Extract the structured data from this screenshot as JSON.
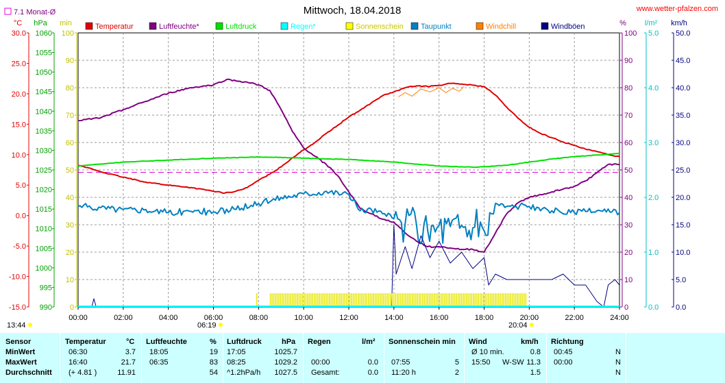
{
  "header": {
    "title": "Mittwoch, 18.04.2018",
    "website": "www.wetter-pfalzen.com",
    "monthly_avg_label": "7.1 Monat-Ø"
  },
  "legend": [
    {
      "label": "Temperatur",
      "color": "#e00000"
    },
    {
      "label": "Luftfeuchte*",
      "color": "#800080"
    },
    {
      "label": "Luftdruck",
      "color": "#00e000"
    },
    {
      "label": "Regen*",
      "color": "#00ffff"
    },
    {
      "label": "Sonnenschein",
      "color": "#ffff00"
    },
    {
      "label": "Taupunkt",
      "color": "#0080c0"
    },
    {
      "label": "Windchill",
      "color": "#ff8000"
    },
    {
      "label": "Windböen",
      "color": "#000080"
    }
  ],
  "axis_units": {
    "temp": "°C",
    "pressure": "hPa",
    "sun": "min",
    "humidity": "%",
    "rain": "l/m²",
    "wind": "km/h"
  },
  "axis_ticks": {
    "temp": [
      "30.0",
      "25.0",
      "20.0",
      "15.0",
      "10.0",
      "5.0",
      "0.0",
      "-5.0",
      "-10.0",
      "-15.0"
    ],
    "pressure": [
      "1060",
      "1055",
      "1050",
      "1045",
      "1040",
      "1035",
      "1030",
      "1025",
      "1020",
      "1015",
      "1010",
      "1005",
      "1000",
      "995",
      "990"
    ],
    "sun": [
      "100",
      "90",
      "80",
      "70",
      "60",
      "50",
      "40",
      "30",
      "20",
      "10",
      "0"
    ],
    "humidity": [
      "100",
      "90",
      "80",
      "70",
      "60",
      "50",
      "40",
      "30",
      "20",
      "10",
      "0"
    ],
    "rain": [
      "5.0",
      "4.0",
      "3.0",
      "2.0",
      "1.0",
      "0.0"
    ],
    "wind": [
      "50.0",
      "45.0",
      "40.0",
      "35.0",
      "30.0",
      "25.0",
      "20.0",
      "15.0",
      "10.0",
      "5.0",
      "0.0"
    ],
    "time": [
      "00:00",
      "02:00",
      "04:00",
      "06:00",
      "08:00",
      "10:00",
      "12:00",
      "14:00",
      "16:00",
      "18:00",
      "20:00",
      "22:00",
      "24:00"
    ]
  },
  "sun_events": {
    "daylength": "13:44",
    "sunrise": "06:19",
    "sunset": "20:04"
  },
  "chart_data": {
    "type": "line",
    "title": "Mittwoch, 18.04.2018",
    "x_unit": "hour",
    "xlim": [
      0,
      24
    ],
    "monthly_avg_temp": 7.1,
    "series": [
      {
        "name": "Temperatur",
        "unit": "°C",
        "axis": "temp",
        "ylim": [
          -15,
          30
        ],
        "x": [
          0,
          0.5,
          1,
          2,
          3,
          4,
          5,
          6,
          6.5,
          7,
          7.5,
          8,
          8.5,
          9,
          9.5,
          10,
          10.5,
          11,
          11.5,
          12,
          12.5,
          13,
          13.5,
          14,
          14.5,
          15,
          15.5,
          16,
          16.5,
          17,
          17.5,
          18,
          18.5,
          19,
          19.5,
          20,
          20.5,
          21,
          21.5,
          22,
          22.5,
          23,
          23.5,
          24
        ],
        "y": [
          8.2,
          7.8,
          7.2,
          6.3,
          5.5,
          5.0,
          4.6,
          4.0,
          3.7,
          4.0,
          4.6,
          5.8,
          6.8,
          8.0,
          9.5,
          10.8,
          12.0,
          13.5,
          14.8,
          16.2,
          17.3,
          18.5,
          19.7,
          20.3,
          21.0,
          21.3,
          21.2,
          21.4,
          21.7,
          21.6,
          21.4,
          21.2,
          19.8,
          17.8,
          16.0,
          14.5,
          13.5,
          12.8,
          12.1,
          11.5,
          10.9,
          10.5,
          10.0,
          9.7
        ]
      },
      {
        "name": "Luftfeuchte*",
        "unit": "%",
        "axis": "humidity",
        "ylim": [
          0,
          100
        ],
        "x": [
          0,
          1,
          2,
          3,
          4,
          5,
          6,
          6.58,
          7,
          7.5,
          8,
          8.5,
          9,
          9.5,
          10,
          10.5,
          11,
          11.5,
          12,
          12.5,
          13,
          13.5,
          14,
          14.5,
          15,
          15.5,
          16,
          16.5,
          17,
          17.5,
          18,
          18.5,
          19,
          19.5,
          20,
          20.5,
          21,
          21.5,
          22,
          22.5,
          23,
          23.5,
          24
        ],
        "y": [
          68,
          69,
          72,
          75,
          78,
          80,
          81,
          83,
          82.5,
          82,
          81,
          79,
          72,
          64,
          58,
          55,
          52,
          48,
          42,
          36,
          34,
          32,
          31,
          27,
          24,
          22,
          22,
          21.5,
          21,
          21,
          20,
          27,
          34,
          38,
          40,
          41,
          42,
          43,
          44,
          46,
          49,
          52,
          52
        ]
      },
      {
        "name": "Luftdruck",
        "unit": "hPa",
        "axis": "pressure",
        "ylim": [
          990,
          1060
        ],
        "x": [
          0,
          1,
          2,
          4,
          6,
          8,
          9,
          10,
          11,
          12,
          14,
          16,
          17.5,
          18,
          19,
          20,
          21,
          22,
          23,
          24
        ],
        "y": [
          1026.0,
          1026.5,
          1027.0,
          1027.5,
          1028.0,
          1028.3,
          1028.2,
          1028.0,
          1027.8,
          1027.7,
          1027.0,
          1026.0,
          1025.7,
          1025.8,
          1026.2,
          1027.0,
          1027.8,
          1028.4,
          1028.8,
          1029.2
        ]
      },
      {
        "name": "Taupunkt",
        "unit": "°C",
        "axis": "temp",
        "ylim": [
          -15,
          30
        ],
        "x": [
          0,
          1,
          2,
          3,
          4,
          5,
          6,
          7,
          8,
          9,
          10,
          11,
          12,
          12.5,
          13,
          13.5,
          14,
          14.5,
          15,
          15.5,
          16,
          16.5,
          17,
          17.5,
          18,
          18.5,
          19,
          20,
          20.5,
          21,
          22,
          23,
          24
        ],
        "y": [
          1.5,
          1.3,
          1.0,
          1.0,
          0.5,
          0.7,
          0.6,
          1.0,
          2.0,
          3.0,
          3.6,
          4.0,
          3.5,
          0.8,
          1.0,
          0.3,
          -0.5,
          -1.3,
          -1.5,
          -2.5,
          -1.6,
          -1.8,
          -1.6,
          -2.0,
          -2.5,
          2.0,
          1.5,
          1.5,
          0.8,
          0.8,
          0.5,
          0.8,
          0.5
        ]
      },
      {
        "name": "Windchill",
        "unit": "°C",
        "axis": "temp",
        "ylim": [
          -15,
          30
        ],
        "x": [
          14.2,
          14.5,
          14.8,
          15.2,
          15.6,
          16,
          16.3,
          16.6,
          16.9,
          17.1
        ],
        "y": [
          19.5,
          20.2,
          19.6,
          20.8,
          20.3,
          21.0,
          20.2,
          20.9,
          20.4,
          21.2
        ]
      },
      {
        "name": "Windböen",
        "unit": "km/h",
        "axis": "wind",
        "ylim": [
          0,
          50
        ],
        "x": [
          0,
          0.6,
          0.7,
          0.8,
          1,
          13.9,
          14.0,
          14.1,
          14.5,
          14.8,
          15.2,
          15.6,
          16,
          16.5,
          17,
          17.5,
          18,
          18.2,
          18.5,
          19,
          20,
          21,
          21.5,
          22,
          22.5,
          23,
          23.3,
          23.5,
          23.8,
          24
        ],
        "y": [
          0,
          0,
          1.5,
          0,
          0,
          0,
          15,
          6,
          11,
          7,
          13,
          9,
          12,
          8,
          10,
          7,
          9,
          4,
          6,
          5,
          5,
          5,
          6,
          4,
          4,
          1,
          0,
          4,
          5,
          4
        ]
      },
      {
        "name": "Sonnenschein",
        "unit": "min",
        "axis": "sun",
        "ylim": [
          0,
          100
        ],
        "bars_from": 8.5,
        "bars_to": 19.85,
        "isolated_bars": [
          7.9
        ],
        "bar_value": 5
      }
    ]
  },
  "stats": {
    "headers": {
      "sensor": "Sensor",
      "temp": "Temperatur",
      "temp_unit": "°C",
      "hum": "Luftfeuchte",
      "hum_unit": "%",
      "press": "Luftdruck",
      "press_unit": "hPa",
      "rain": "Regen",
      "rain_unit": "l/m²",
      "sun": "Sonnenschein min",
      "wind": "Wind",
      "wind_unit": "km/h",
      "dir": "Richtung"
    },
    "rows": [
      {
        "label": "MinWert",
        "temp_time": "06:30",
        "temp_val": "3.7",
        "hum_time": "18:05",
        "hum_val": "19",
        "press_time": "17:05",
        "press_val": "1025.7",
        "rain_time": "",
        "rain_val": "",
        "sun_time": "",
        "sun_val": "",
        "wind_time": "Ø 10 min.",
        "wind_dir": "",
        "wind_val": "0.8",
        "dir_time": "00:45",
        "dir_val": "N"
      },
      {
        "label": "MaxWert",
        "temp_time": "16:40",
        "temp_val": "21.7",
        "hum_time": "06:35",
        "hum_val": "83",
        "press_time": "08:25",
        "press_val": "1029.2",
        "rain_time": "00:00",
        "rain_val": "0.0",
        "sun_time": "07:55",
        "sun_val": "5",
        "wind_time": "15:50",
        "wind_dir": "W-SW",
        "wind_val": "11.3",
        "dir_time": "00:00",
        "dir_val": "N"
      },
      {
        "label": "Durchschnitt",
        "temp_time": "(+ 4.81 )",
        "temp_val": "11.91",
        "hum_time": "",
        "hum_val": "54",
        "press_time": "^1.2hPa/h",
        "press_val": "1027.5",
        "rain_time": "Gesamt:",
        "rain_val": "0.0",
        "sun_time": "11:20 h",
        "sun_val": "2",
        "wind_time": "",
        "wind_dir": "",
        "wind_val": "1.5",
        "dir_time": "",
        "dir_val": "N"
      }
    ]
  }
}
